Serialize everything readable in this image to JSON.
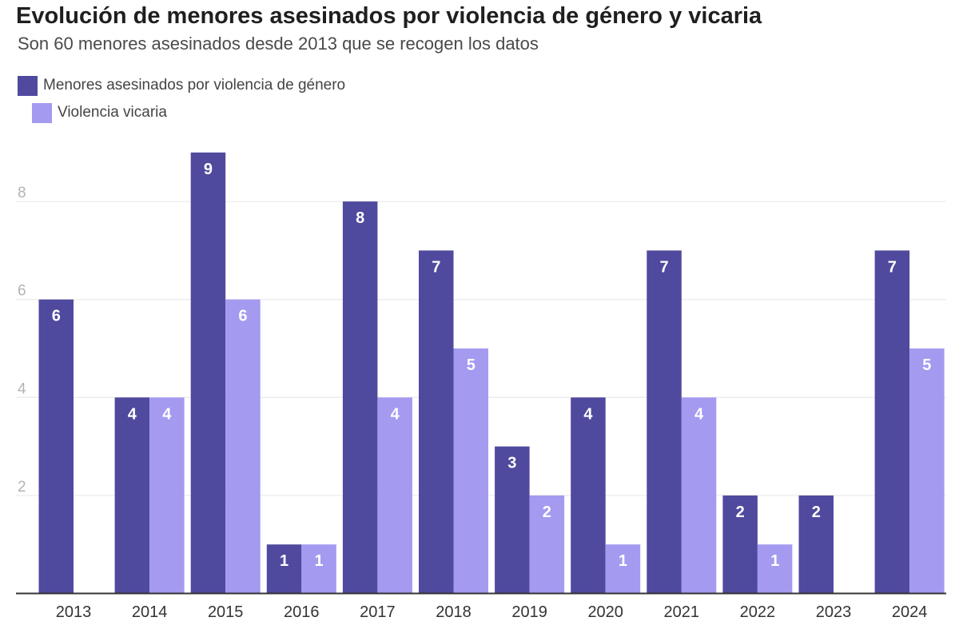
{
  "title": "Evolución de menores asesinados por violencia de género y vicaria",
  "subtitle": "Son 60 menores asesinados desde 2013 que se recogen los datos",
  "colors": {
    "series1": "#4f4a9e",
    "series2": "#a49af0",
    "grid": "#e6e6e6",
    "axis": "#333333"
  },
  "legend": [
    {
      "label": "Menores asesinados por violencia de género"
    },
    {
      "label": "Violencia vicaria"
    }
  ],
  "chart_data": {
    "type": "bar",
    "title": "Evolución de menores asesinados por violencia de género y vicaria",
    "subtitle": "Son 60 menores asesinados desde 2013 que se recogen los datos",
    "xlabel": "",
    "ylabel": "",
    "categories": [
      "2013",
      "2014",
      "2015",
      "2016",
      "2017",
      "2018",
      "2019",
      "2020",
      "2021",
      "2022",
      "2023",
      "2024"
    ],
    "series": [
      {
        "name": "Menores asesinados por violencia de género",
        "values": [
          6,
          4,
          9,
          1,
          8,
          7,
          3,
          4,
          7,
          2,
          2,
          7
        ]
      },
      {
        "name": "Violencia vicaria",
        "values": [
          null,
          4,
          6,
          1,
          4,
          5,
          2,
          1,
          4,
          1,
          null,
          5
        ]
      }
    ],
    "yticks": [
      2,
      4,
      6,
      8
    ],
    "ylim": [
      0,
      9
    ],
    "grid": true,
    "legend_position": "top-left",
    "data_labels": true
  }
}
